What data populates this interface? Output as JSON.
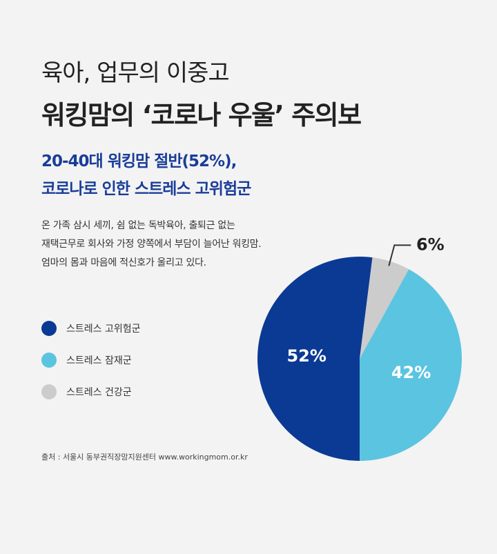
{
  "header": {
    "title_line1": "육아, 업무의 이중고",
    "title_line2": "워킹맘의 ‘코로나 우울’ 주의보",
    "subtitle_line1": "20-40대 워킹맘 절반(52%),",
    "subtitle_line2": "코로나로 인한 스트레스 고위험군"
  },
  "description": {
    "line1": "온 가족 삼시 세끼, 쉼 없는 독박육아, 출퇴근 없는",
    "line2": "재택근무로 회사와 가정 양쪽에서 부담이 늘어난 워킹맘.",
    "line3": "엄마의 몸과 마음에 적신호가 울리고 있다."
  },
  "source": "출처 : 서울시 동부권직장맘지원센터 www.workingmom.or.kr",
  "chart_data": {
    "type": "pie",
    "categories": [
      "스트레스 고위험군",
      "스트레스 잠재군",
      "스트레스 건강군"
    ],
    "values": [
      52,
      42,
      6
    ],
    "labels": [
      "52%",
      "42%",
      "6%"
    ],
    "colors": [
      "#0b3a94",
      "#5bc4e0",
      "#cccccc"
    ],
    "legend_position": "left"
  }
}
